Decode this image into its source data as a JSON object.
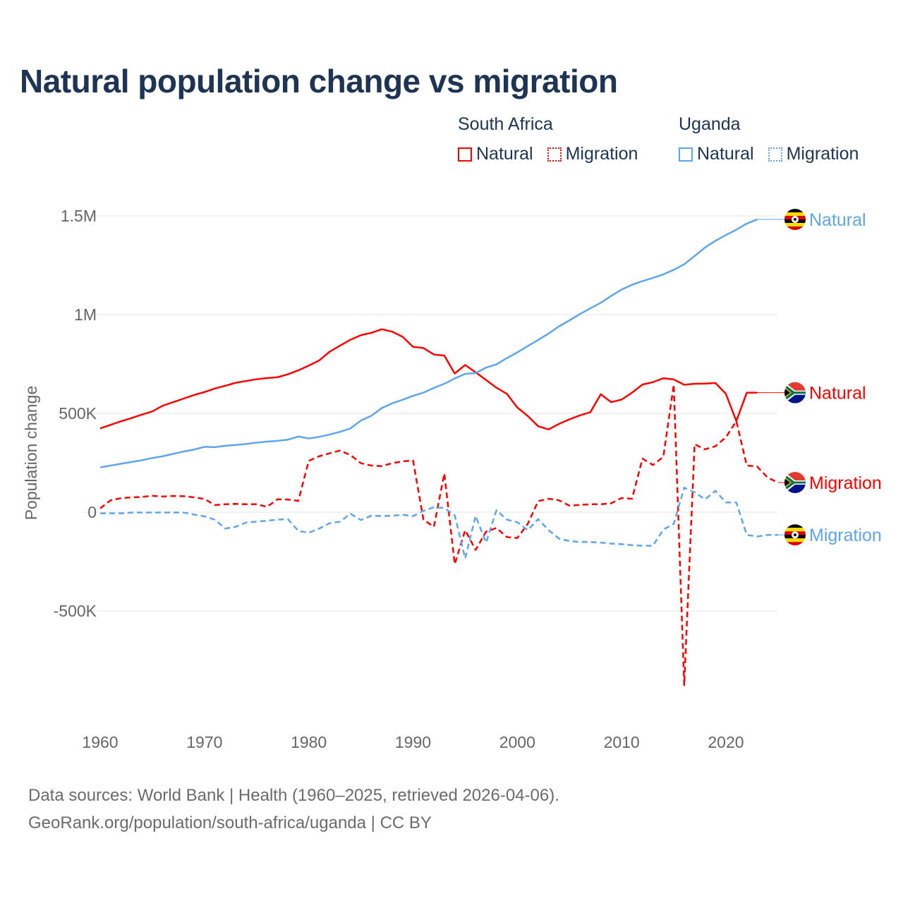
{
  "chart_data": {
    "type": "line",
    "title": "Natural population change vs migration",
    "ylabel": "Population change",
    "xlabel": "",
    "ylim": [
      -1000000,
      1600000
    ],
    "xlim": [
      1960,
      2025
    ],
    "grid": true,
    "x_ticks": [
      1960,
      1970,
      1980,
      1990,
      2000,
      2010,
      2020
    ],
    "x_tick_labels": [
      "1960",
      "1970",
      "1980",
      "1990",
      "2000",
      "2010",
      "2020"
    ],
    "y_ticks": [
      -500000,
      0,
      500000,
      1000000,
      1500000
    ],
    "y_tick_labels": [
      "-500K",
      "0",
      "500K",
      "1M",
      "1.5M"
    ],
    "legend_placement": "top-right",
    "legend": [
      {
        "group": "South Africa",
        "items": [
          "Natural",
          "Migration"
        ]
      },
      {
        "group": "Uganda",
        "items": [
          "Natural",
          "Migration"
        ]
      }
    ],
    "series": [
      {
        "name": "South Africa Natural",
        "country": "South Africa",
        "label": "Natural",
        "color": "#ff0000",
        "dash": false,
        "start_year": 1960,
        "values": [
          424000,
          442000,
          460000,
          476000,
          494000,
          510000,
          539000,
          557000,
          575000,
          593000,
          608000,
          626000,
          640000,
          655000,
          664000,
          673000,
          679000,
          683000,
          698000,
          718000,
          742000,
          768000,
          812000,
          843000,
          873000,
          896000,
          908000,
          926000,
          914000,
          888000,
          837000,
          831000,
          798000,
          793000,
          702000,
          745000,
          708000,
          669000,
          630000,
          599000,
          530000,
          487000,
          435000,
          419000,
          447000,
          470000,
          490000,
          506000,
          597000,
          557000,
          570000,
          605000,
          646000,
          658000,
          678000,
          672000,
          645000,
          650000,
          651000,
          654000,
          599000,
          461000,
          605000,
          605000
        ]
      },
      {
        "name": "South Africa Migration",
        "country": "South Africa",
        "label": "Migration",
        "color": "#ff0000",
        "dash": true,
        "start_year": 1960,
        "values": [
          19000,
          60000,
          71000,
          75000,
          77000,
          83000,
          79000,
          82000,
          81000,
          75000,
          67000,
          36000,
          40000,
          42000,
          40000,
          40000,
          27000,
          65000,
          64000,
          57000,
          260000,
          283000,
          298000,
          312000,
          289000,
          248000,
          236000,
          233000,
          248000,
          257000,
          262000,
          -38000,
          -74000,
          196000,
          -263000,
          -91000,
          -191000,
          -99000,
          -80000,
          -126000,
          -131000,
          -59000,
          56000,
          68000,
          60000,
          33000,
          37000,
          40000,
          40000,
          45000,
          72000,
          68000,
          271000,
          239000,
          280000,
          646000,
          -876000,
          344000,
          318000,
          334000,
          379000,
          461000,
          236000,
          231000,
          175000,
          150000
        ]
      },
      {
        "name": "Uganda Natural",
        "country": "Uganda",
        "label": "Natural",
        "color": "#5ea5ec",
        "dash": false,
        "start_year": 1960,
        "values": [
          227000,
          236000,
          245000,
          254000,
          263000,
          274000,
          283000,
          295000,
          307000,
          317000,
          331000,
          329000,
          336000,
          340000,
          345000,
          352000,
          357000,
          361000,
          367000,
          383000,
          373000,
          381000,
          393000,
          407000,
          424000,
          464000,
          488000,
          527000,
          551000,
          569000,
          589000,
          605000,
          629000,
          650000,
          677000,
          700000,
          704000,
          732000,
          748000,
          780000,
          809000,
          841000,
          872000,
          904000,
          941000,
          971000,
          1003000,
          1032000,
          1060000,
          1095000,
          1127000,
          1151000,
          1170000,
          1186000,
          1204000,
          1227000,
          1255000,
          1297000,
          1340000,
          1374000,
          1403000,
          1430000,
          1461000,
          1482000
        ]
      },
      {
        "name": "Uganda Migration",
        "country": "Uganda",
        "label": "Migration",
        "color": "#5ea5ec",
        "dash": true,
        "start_year": 1960,
        "values": [
          -6000,
          -6000,
          -6000,
          -2000,
          -2000,
          -2000,
          -2000,
          -2000,
          -2000,
          -12000,
          -21000,
          -38000,
          -83000,
          -74000,
          -52000,
          -48000,
          -43000,
          -38000,
          -35000,
          -95000,
          -104000,
          -83000,
          -56000,
          -48000,
          -8000,
          -40000,
          -18000,
          -20000,
          -18000,
          -13000,
          -20000,
          7000,
          25000,
          21000,
          -16000,
          -234000,
          -19000,
          -154000,
          10000,
          -38000,
          -51000,
          -91000,
          -35000,
          -91000,
          -134000,
          -146000,
          -151000,
          -151000,
          -154000,
          -159000,
          -162000,
          -167000,
          -170000,
          -170000,
          -88000,
          -59000,
          124000,
          100000,
          65000,
          108000,
          49000,
          49000,
          -115000,
          -123000,
          -115000,
          -115000
        ]
      }
    ]
  },
  "footer": {
    "line1": "Data sources: World Bank | Health (1960–2025, retrieved 2026-04-06).",
    "line2": "GeoRank.org/population/south-africa/uganda | CC BY"
  }
}
